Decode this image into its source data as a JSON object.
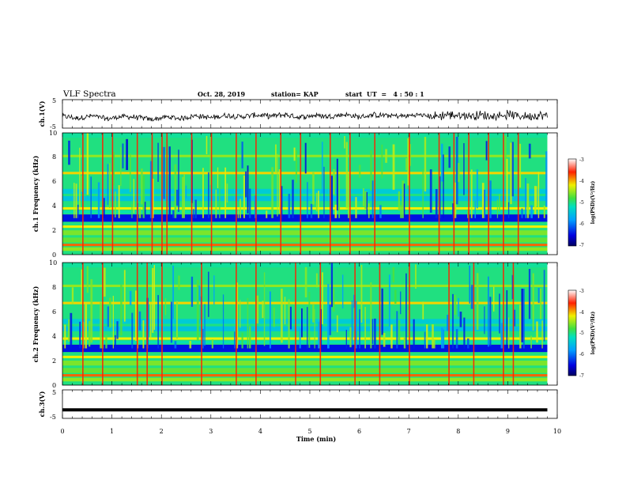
{
  "header": {
    "title": "VLF Spectra",
    "date": "Oct. 28, 2019",
    "station": "station= KAP",
    "start": "start  UT  =   4 : 50 : 1"
  },
  "chart_data": [
    {
      "type": "line",
      "panel": "ch1_waveform",
      "ylabel": "ch.1(V)",
      "ylim": [
        -5,
        5
      ],
      "yticks": [
        "5",
        "-5"
      ],
      "xlim": [
        0,
        10
      ],
      "color": "#000000",
      "x": [
        0,
        0.3,
        0.6,
        0.9,
        1.2,
        1.5,
        1.8,
        2.1,
        2.4,
        2.7,
        3.0,
        3.3,
        3.6,
        3.9,
        4.2,
        4.5,
        4.8,
        5.1,
        5.4,
        5.7,
        6.0,
        6.3,
        6.6,
        6.9,
        7.2,
        7.5,
        7.8,
        8.1,
        8.4,
        8.7,
        9.0,
        9.3,
        9.6,
        9.8
      ],
      "values": [
        -0.8,
        -1.5,
        -0.7,
        -1.8,
        -0.9,
        -1.2,
        -2.0,
        -1.1,
        -1.6,
        -0.6,
        -1.4,
        -0.5,
        -1.0,
        -0.4,
        -0.8,
        -0.3,
        -1.2,
        -0.5,
        -0.9,
        -0.2,
        -1.1,
        -0.4,
        -0.6,
        -0.8,
        -0.3,
        -1.0,
        -0.2,
        -0.7,
        -0.4,
        -0.9,
        -0.3,
        -0.8,
        -0.5,
        -0.6
      ]
    },
    {
      "type": "heatmap",
      "panel": "ch1_spectrogram",
      "ylabel": "ch.1 Frequency (kHz)",
      "xlim": [
        0,
        10
      ],
      "ylim": [
        0,
        10
      ],
      "yticks": [
        "0",
        "2",
        "4",
        "6",
        "8",
        "10"
      ],
      "colorbar": {
        "label": "log(PSD)(V²/Hz)",
        "ticks": [
          "-3",
          "-4",
          "-5",
          "-6",
          "-7"
        ],
        "range": [
          -7,
          -3
        ]
      },
      "impulse_times_min": [
        0.4,
        0.8,
        1.0,
        1.5,
        1.8,
        2.0,
        2.1,
        2.6,
        3.0,
        3.5,
        3.9,
        4.4,
        4.8,
        5.4,
        5.8,
        6.3,
        7.0,
        7.6,
        7.9,
        8.2,
        8.6,
        8.9,
        9.2
      ]
    },
    {
      "type": "heatmap",
      "panel": "ch2_spectrogram",
      "ylabel": "ch.2 Frequency (kHz)",
      "xlim": [
        0,
        10
      ],
      "ylim": [
        0,
        10
      ],
      "yticks": [
        "0",
        "2",
        "4",
        "6",
        "8",
        "10"
      ],
      "colorbar": {
        "label": "log(PSD)(V²/Hz)",
        "ticks": [
          "-3",
          "-4",
          "-5",
          "-6",
          "-7"
        ],
        "range": [
          -7,
          -3
        ]
      },
      "impulse_times_min": [
        0.4,
        0.8,
        1.5,
        1.7,
        2.0,
        2.8,
        3.5,
        3.9,
        4.7,
        5.2,
        5.9,
        6.4,
        7.0,
        7.8,
        8.3,
        8.9,
        9.1
      ]
    },
    {
      "type": "line",
      "panel": "ch3_waveform",
      "ylabel": "ch.3(V)",
      "ylim": [
        -5,
        5
      ],
      "yticks": [
        "5",
        "-5"
      ],
      "xlim": [
        0,
        10
      ],
      "color": "#000000",
      "x": [
        0,
        9.8
      ],
      "values": [
        -2.0,
        -2.0
      ]
    }
  ],
  "xaxis": {
    "label": "Time (min)",
    "ticks": [
      "0",
      "1",
      "2",
      "3",
      "4",
      "5",
      "6",
      "7",
      "8",
      "9",
      "10"
    ]
  }
}
